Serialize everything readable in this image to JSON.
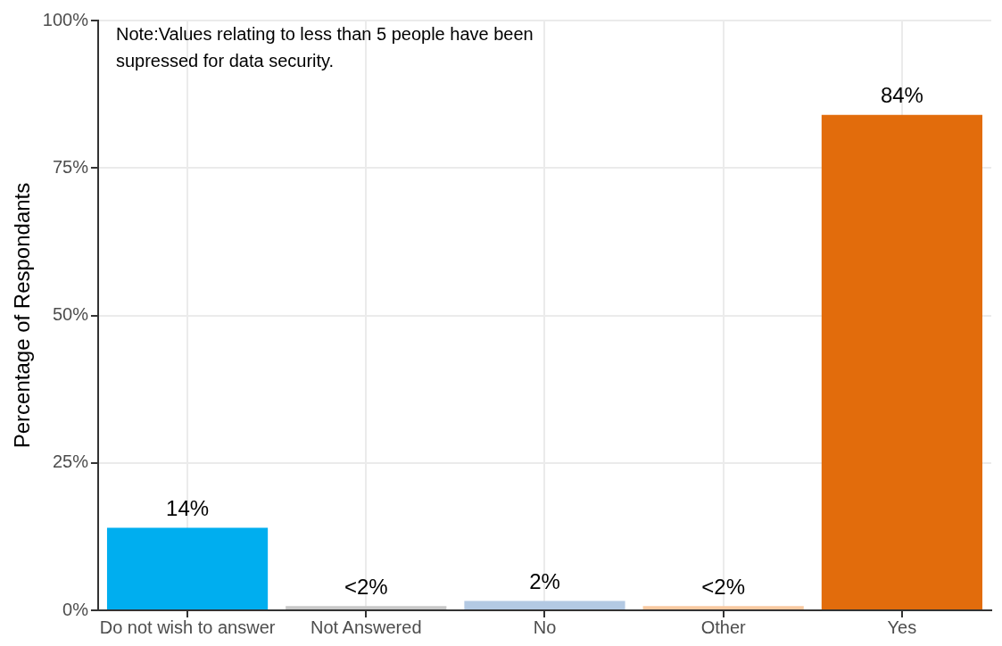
{
  "chart_data": {
    "type": "bar",
    "ylabel": "Percentage of Respondants",
    "categories": [
      "Do not wish to answer",
      "Not Answered",
      "No",
      "Other",
      "Yes"
    ],
    "values": [
      14,
      0.7,
      1.6,
      0.7,
      84
    ],
    "colors": [
      "#00aeef",
      "#c8c8c8",
      "#b3c9e3",
      "#f9c9a0",
      "#e26c0c"
    ],
    "value_labels": [
      "14%",
      "<2%",
      "2%",
      "<2%",
      "84%"
    ],
    "ylim": [
      0,
      100
    ],
    "yticks": [
      {
        "value": 0,
        "label": "0%"
      },
      {
        "value": 25,
        "label": "25%"
      },
      {
        "value": 50,
        "label": "50%"
      },
      {
        "value": 75,
        "label": "75%"
      },
      {
        "value": 100,
        "label": "100%"
      }
    ],
    "grid": true,
    "annotations": [
      "Note:Values relating to less than 5 people have been supressed for data security."
    ]
  }
}
